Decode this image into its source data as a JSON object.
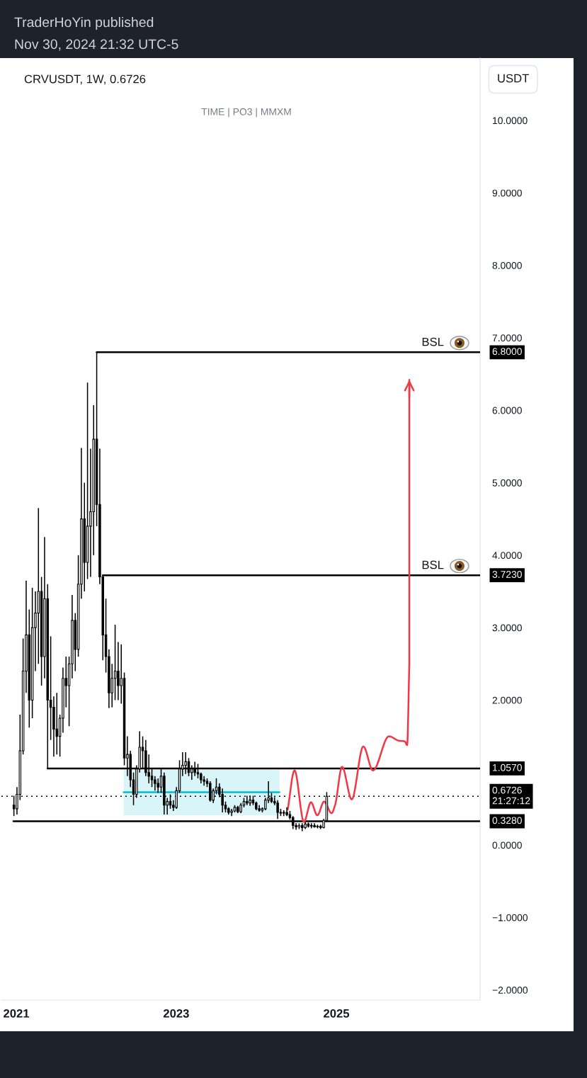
{
  "chart_data": {
    "type": "candlestick",
    "title": "CRVUSDT, 1W, 0.6726",
    "subtitle": "TIME | PO3 | MMXM",
    "ylabel": "USDT",
    "annotations": [
      "TraderHoYin published",
      "Nov 30, 2024 21:32 UTC-5",
      {
        "text": "BSL",
        "x": "2026-05-07",
        "y": 6.8
      },
      {
        "text": "BSL",
        "x": "2026-05-07",
        "y": 3.723
      }
    ],
    "color": "#000000",
    "x": [
      "2020-12-21",
      "2021-01-04",
      "2021-01-18",
      "2021-02-01",
      "2021-02-15",
      "2021-03-01",
      "2021-03-15",
      "2021-03-29",
      "2021-04-12",
      "2021-04-26",
      "2021-05-10",
      "2021-05-24",
      "2021-06-07",
      "2021-06-21",
      "2021-07-05",
      "2021-07-19",
      "2021-08-02",
      "2021-08-16",
      "2021-08-30",
      "2021-09-13",
      "2021-09-27",
      "2021-10-11",
      "2021-10-25",
      "2021-11-08",
      "2021-11-22",
      "2021-12-06",
      "2021-12-20",
      "2022-01-03",
      "2022-01-17",
      "2022-01-31",
      "2022-02-14",
      "2022-02-28",
      "2022-03-14",
      "2022-03-28",
      "2022-04-11",
      "2022-04-25",
      "2022-05-09",
      "2022-05-23",
      "2022-06-06",
      "2022-06-20",
      "2022-07-04",
      "2022-07-18",
      "2022-08-01",
      "2022-08-15",
      "2022-08-29",
      "2022-09-12",
      "2022-09-26",
      "2022-10-10",
      "2022-10-24",
      "2022-11-07",
      "2022-11-21",
      "2022-12-05",
      "2022-12-19",
      "2023-01-02",
      "2023-01-16",
      "2023-01-30",
      "2023-02-13",
      "2023-02-27",
      "2023-03-13",
      "2023-03-27",
      "2023-04-10",
      "2023-04-24",
      "2023-05-08",
      "2023-05-22",
      "2023-06-05",
      "2023-06-19",
      "2023-07-03",
      "2023-07-17",
      "2023-07-31",
      "2023-08-14",
      "2023-08-28",
      "2023-09-11",
      "2023-09-25",
      "2023-10-09",
      "2023-10-23",
      "2023-11-06",
      "2023-11-20",
      "2023-12-04",
      "2023-12-18",
      "2024-01-01",
      "2024-01-15",
      "2024-01-29",
      "2024-02-12",
      "2024-02-26",
      "2024-03-11",
      "2024-03-25",
      "2024-04-08",
      "2024-04-22",
      "2024-05-06",
      "2024-05-20",
      "2024-06-03",
      "2024-06-17",
      "2024-07-01",
      "2024-07-15",
      "2024-07-29",
      "2024-08-12",
      "2024-08-26",
      "2024-09-09",
      "2024-09-23",
      "2024-10-07",
      "2024-10-21",
      "2024-11-04",
      "2024-11-18"
    ],
    "ohlc": [
      [
        0.55,
        0.68,
        0.4,
        0.5
      ],
      [
        0.5,
        0.8,
        0.42,
        0.7
      ],
      [
        0.7,
        1.8,
        0.62,
        1.3
      ],
      [
        1.3,
        2.85,
        1.25,
        2.4
      ],
      [
        2.4,
        3.65,
        2.1,
        2.9
      ],
      [
        2.9,
        3.25,
        1.62,
        2.0
      ],
      [
        2.0,
        3.55,
        1.75,
        3.0
      ],
      [
        3.0,
        3.5,
        2.4,
        3.2
      ],
      [
        3.2,
        4.65,
        2.5,
        3.5
      ],
      [
        3.5,
        3.7,
        2.2,
        2.6
      ],
      [
        2.6,
        4.25,
        2.3,
        3.4
      ],
      [
        3.4,
        3.6,
        1.057,
        2.0
      ],
      [
        2.0,
        2.88,
        1.45,
        1.9
      ],
      [
        1.9,
        2.05,
        1.22,
        1.6
      ],
      [
        1.6,
        2.1,
        1.25,
        1.5
      ],
      [
        1.5,
        1.8,
        1.22,
        1.75
      ],
      [
        1.75,
        2.45,
        1.55,
        2.3
      ],
      [
        2.3,
        2.6,
        1.9,
        2.2
      ],
      [
        2.2,
        2.6,
        1.64,
        2.5
      ],
      [
        2.5,
        3.45,
        2.3,
        3.1
      ],
      [
        3.1,
        3.2,
        2.4,
        2.7
      ],
      [
        2.7,
        4.0,
        2.6,
        3.6
      ],
      [
        3.6,
        5.48,
        3.4,
        4.5
      ],
      [
        4.5,
        5.0,
        3.5,
        3.9
      ],
      [
        3.9,
        6.38,
        3.67,
        4.4
      ],
      [
        4.4,
        5.47,
        3.7,
        4.6
      ],
      [
        4.6,
        6.07,
        4.0,
        5.6
      ],
      [
        5.6,
        6.8,
        4.4,
        4.7
      ],
      [
        4.7,
        5.47,
        3.6,
        3.7
      ],
      [
        3.7,
        3.723,
        2.55,
        2.9
      ],
      [
        2.9,
        3.4,
        2.38,
        2.6
      ],
      [
        2.6,
        2.7,
        1.89,
        2.1
      ],
      [
        2.1,
        2.5,
        1.9,
        2.3
      ],
      [
        2.3,
        3.04,
        2.0,
        2.4
      ],
      [
        2.4,
        2.8,
        2.0,
        2.2
      ],
      [
        2.2,
        2.77,
        1.95,
        2.3
      ],
      [
        2.3,
        2.38,
        1.1,
        1.2
      ],
      [
        1.2,
        1.5,
        0.95,
        1.25
      ],
      [
        1.25,
        1.3,
        0.8,
        0.9
      ],
      [
        0.9,
        1.0,
        0.55,
        0.7
      ],
      [
        0.7,
        1.1,
        0.65,
        1.05
      ],
      [
        1.05,
        1.57,
        1.0,
        1.35
      ],
      [
        1.35,
        1.5,
        1.05,
        1.3
      ],
      [
        1.3,
        1.45,
        0.95,
        1.0
      ],
      [
        1.0,
        1.25,
        0.85,
        0.95
      ],
      [
        0.95,
        1.05,
        0.8,
        0.9
      ],
      [
        0.9,
        0.95,
        0.75,
        0.85
      ],
      [
        0.85,
        0.92,
        0.72,
        0.8
      ],
      [
        0.8,
        1.05,
        0.72,
        0.95
      ],
      [
        0.95,
        1.0,
        0.42,
        0.55
      ],
      [
        0.55,
        0.65,
        0.42,
        0.6
      ],
      [
        0.6,
        0.7,
        0.5,
        0.55
      ],
      [
        0.55,
        0.62,
        0.47,
        0.52
      ],
      [
        0.52,
        0.8,
        0.5,
        0.75
      ],
      [
        0.75,
        1.17,
        0.72,
        1.05
      ],
      [
        1.05,
        1.28,
        0.95,
        1.1
      ],
      [
        1.1,
        1.28,
        0.98,
        1.15
      ],
      [
        1.15,
        1.2,
        0.95,
        1.0
      ],
      [
        1.0,
        1.1,
        0.9,
        1.05
      ],
      [
        1.05,
        1.15,
        0.95,
        1.0
      ],
      [
        1.0,
        1.12,
        0.92,
        0.98
      ],
      [
        0.98,
        1.0,
        0.85,
        0.9
      ],
      [
        0.9,
        0.95,
        0.82,
        0.88
      ],
      [
        0.88,
        0.92,
        0.8,
        0.85
      ],
      [
        0.85,
        0.88,
        0.6,
        0.62
      ],
      [
        0.62,
        0.78,
        0.58,
        0.75
      ],
      [
        0.75,
        0.92,
        0.7,
        0.8
      ],
      [
        0.8,
        0.85,
        0.66,
        0.7
      ],
      [
        0.7,
        0.78,
        0.45,
        0.55
      ],
      [
        0.55,
        0.6,
        0.45,
        0.5
      ],
      [
        0.5,
        0.52,
        0.42,
        0.45
      ],
      [
        0.45,
        0.5,
        0.4,
        0.47
      ],
      [
        0.47,
        0.55,
        0.45,
        0.52
      ],
      [
        0.52,
        0.54,
        0.44,
        0.46
      ],
      [
        0.46,
        0.58,
        0.44,
        0.55
      ],
      [
        0.55,
        0.65,
        0.52,
        0.6
      ],
      [
        0.6,
        0.68,
        0.55,
        0.58
      ],
      [
        0.58,
        0.68,
        0.54,
        0.62
      ],
      [
        0.62,
        0.68,
        0.55,
        0.58
      ],
      [
        0.58,
        0.6,
        0.48,
        0.5
      ],
      [
        0.5,
        0.55,
        0.46,
        0.48
      ],
      [
        0.48,
        0.52,
        0.45,
        0.5
      ],
      [
        0.5,
        0.65,
        0.48,
        0.62
      ],
      [
        0.62,
        0.88,
        0.58,
        0.65
      ],
      [
        0.65,
        0.72,
        0.58,
        0.6
      ],
      [
        0.6,
        0.66,
        0.55,
        0.58
      ],
      [
        0.58,
        0.62,
        0.36,
        0.45
      ],
      [
        0.45,
        0.5,
        0.4,
        0.44
      ],
      [
        0.44,
        0.48,
        0.4,
        0.45
      ],
      [
        0.45,
        0.52,
        0.4,
        0.42
      ],
      [
        0.42,
        0.47,
        0.35,
        0.38
      ],
      [
        0.38,
        0.4,
        0.22,
        0.27
      ],
      [
        0.27,
        0.3,
        0.21,
        0.25
      ],
      [
        0.25,
        0.3,
        0.22,
        0.27
      ],
      [
        0.27,
        0.3,
        0.19,
        0.24
      ],
      [
        0.24,
        0.32,
        0.22,
        0.29
      ],
      [
        0.29,
        0.31,
        0.24,
        0.26
      ],
      [
        0.26,
        0.3,
        0.23,
        0.27
      ],
      [
        0.27,
        0.3,
        0.24,
        0.25
      ],
      [
        0.25,
        0.28,
        0.23,
        0.26
      ],
      [
        0.26,
        0.28,
        0.22,
        0.24
      ],
      [
        0.24,
        0.36,
        0.23,
        0.34
      ],
      [
        0.34,
        0.73,
        0.32,
        0.6726
      ]
    ],
    "series": [
      {
        "type": "line",
        "x": [
          "2022-01-03",
          "2026-10-19"
        ],
        "values": [
          6.8,
          6.8
        ],
        "color": "#000000",
        "value_labels": [
          null,
          "6.8000"
        ]
      },
      {
        "type": "line",
        "x": [
          "2022-01-31",
          "2026-10-19"
        ],
        "values": [
          3.723,
          3.723
        ],
        "color": "#000000",
        "value_labels": [
          null,
          "3.7230"
        ]
      },
      {
        "type": "line",
        "x": [
          "2021-05-24",
          "2026-10-19"
        ],
        "values": [
          1.057,
          1.057
        ],
        "color": "#000000",
        "value_labels": [
          null,
          "1.0570"
        ]
      },
      {
        "type": "line",
        "x": [
          "2020-12-19",
          "2026-10-19"
        ],
        "values": [
          0.328,
          0.328
        ],
        "color": "#000000",
        "value_labels": [
          null,
          "0.3280"
        ]
      },
      {
        "type": "line",
        "x": [
          "2022-05-06",
          "2024-04-16"
        ],
        "values": [
          0.73,
          0.73
        ],
        "lower": [
          0.41,
          0.41
        ],
        "upper": [
          1.04,
          1.04
        ],
        "color": "#00bcd4"
      },
      {
        "type": "line",
        "x": [
          "2024-05-24",
          "2024-06-24",
          "2024-08-06",
          "2024-09-07",
          "2024-10-06",
          "2024-11-06",
          "2024-12-10",
          "2024-12-26",
          "2025-01-27",
          "2025-03-12",
          "2025-05-04",
          "2025-06-17",
          "2025-08-29",
          "2025-10-13",
          "2025-11-09",
          "2025-11-20",
          "2025-11-30",
          "2025-11-30"
        ],
        "values": [
          0.49,
          1.03,
          0.32,
          0.59,
          0.41,
          0.6,
          0.44,
          0.55,
          1.08,
          0.63,
          1.36,
          1.03,
          1.5,
          1.44,
          1.43,
          1.38,
          2.5,
          6.42
        ],
        "color": "#f23645"
      }
    ],
    "ref_lines": [
      {
        "axis": "y",
        "value": 0.6726,
        "label": "0.6726\n21:27:12",
        "color": "#000000",
        "line_style": "dotted"
      }
    ],
    "xlim": [
      "2020-10-25",
      "2026-10-19"
    ],
    "xticks": [
      {
        "value": "2021-01-01",
        "label": "2021"
      },
      {
        "value": "2023-01-01",
        "label": "2023"
      },
      {
        "value": "2025-01-01",
        "label": "2025"
      }
    ],
    "ylim": [
      -2.14,
      10.86
    ],
    "yticks": [
      {
        "value": -2,
        "label": "−2.0000"
      },
      {
        "value": -1,
        "label": "−1.0000"
      },
      {
        "value": 0,
        "label": "0.0000"
      },
      {
        "value": 2,
        "label": "2.0000"
      },
      {
        "value": 3,
        "label": "3.0000"
      },
      {
        "value": 4,
        "label": "4.0000"
      },
      {
        "value": 5,
        "label": "5.0000"
      },
      {
        "value": 6,
        "label": "6.0000"
      },
      {
        "value": 7,
        "label": "7.0000"
      },
      {
        "value": 8,
        "label": "8.0000"
      },
      {
        "value": 9,
        "label": "9.0000"
      },
      {
        "value": 10,
        "label": "10.0000"
      }
    ]
  }
}
